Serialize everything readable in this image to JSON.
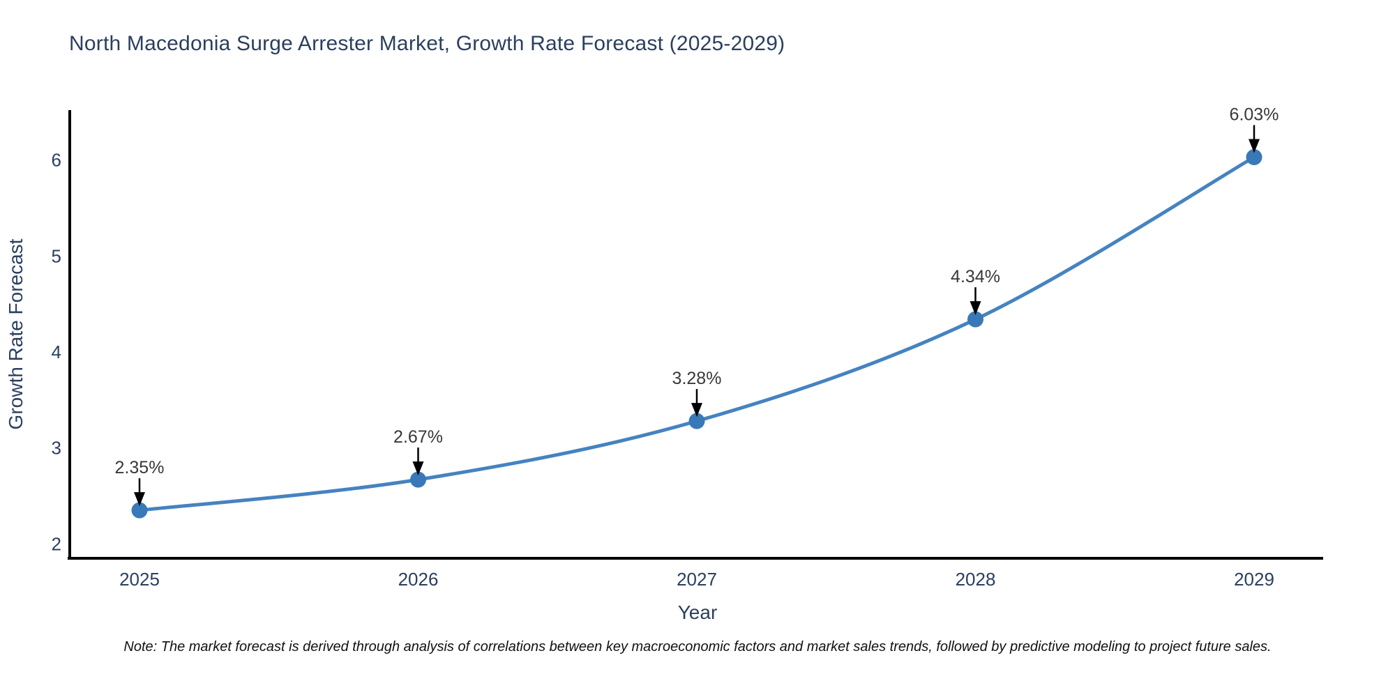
{
  "chart_data": {
    "type": "line",
    "title": "North Macedonia Surge Arrester Market, Growth Rate Forecast (2025-2029)",
    "x": [
      2025,
      2026,
      2027,
      2028,
      2029
    ],
    "series": [
      {
        "name": "Growth Rate Forecast",
        "values": [
          2.35,
          2.67,
          3.28,
          4.34,
          6.03
        ],
        "point_labels": [
          "2.35%",
          "2.67%",
          "3.28%",
          "4.34%",
          "6.03%"
        ]
      }
    ],
    "xlabel": "Year",
    "ylabel": "Growth Rate Forecast",
    "xticks": [
      "2025",
      "2026",
      "2027",
      "2028",
      "2029"
    ],
    "yticks": [
      2,
      3,
      4,
      5,
      6
    ],
    "ylim": [
      1.85,
      6.52
    ],
    "grid": false,
    "legend_position": "none",
    "line_shape": "spline",
    "marker": "circle",
    "annotation_arrows": true,
    "colors": {
      "line": "#4583c0",
      "marker": "#3a79b8",
      "axis_line": "#000000",
      "tick_label": "#2a3f5f",
      "axis_title": "#2a3f5f",
      "annotation_text": "#383838",
      "annotation_arrow": "#000000",
      "title": "#2a3f5f",
      "background": "#ffffff"
    }
  },
  "note": "Note: The market forecast is derived through analysis of correlations between key macroeconomic factors and market sales trends, followed by predictive modeling to project future sales."
}
